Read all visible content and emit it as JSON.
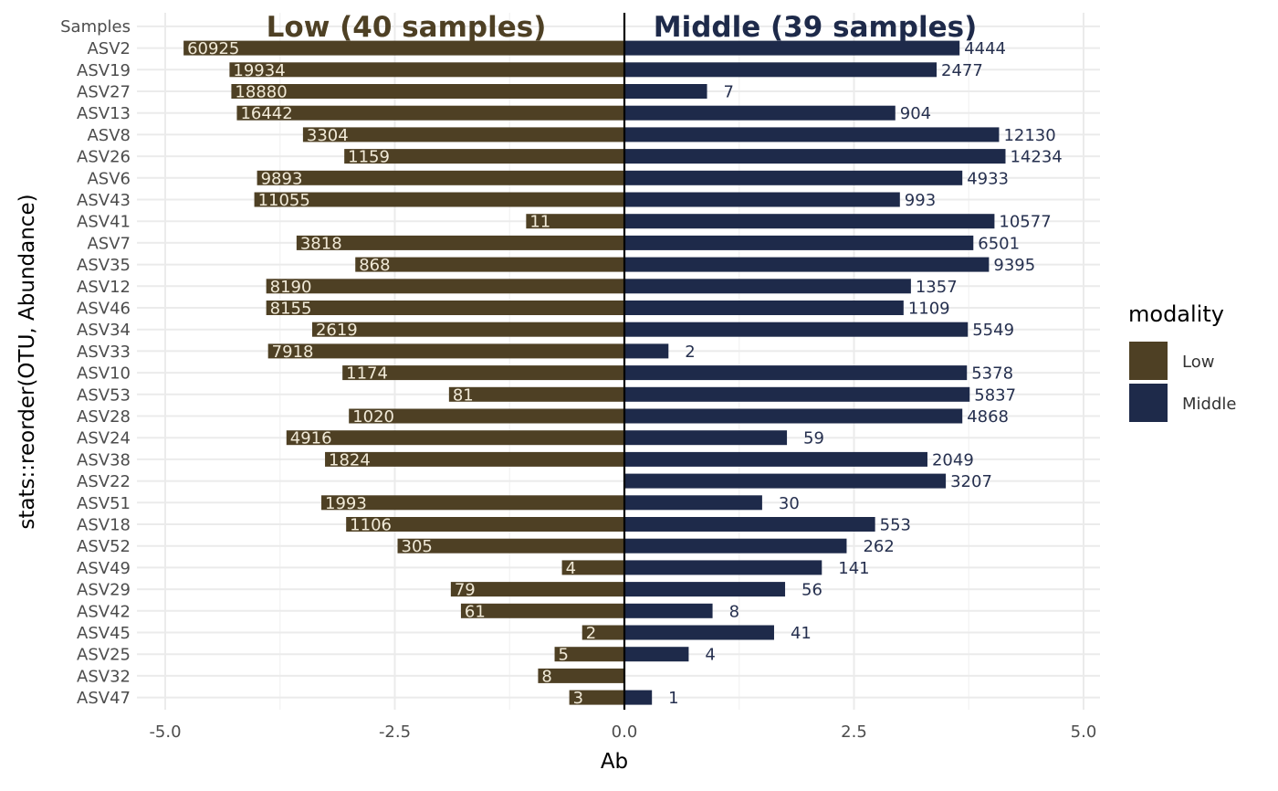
{
  "chart_data": {
    "type": "bar",
    "orientation": "horizontal-diverging",
    "ylabel": "stats::reorder(OTU, Abundance)",
    "xlabel": "Ab",
    "xlim": [
      -5.0,
      5.0
    ],
    "xticks": [
      -5.0,
      -2.5,
      0.0,
      2.5,
      5.0
    ],
    "xtick_labels": [
      "-5.0",
      "-2.5",
      "0.0",
      "2.5",
      "5.0"
    ],
    "top_row_label": "Samples",
    "headers": {
      "left": "Low (40 samples)",
      "right": "Middle (39 samples)"
    },
    "legend": {
      "title": "modality",
      "items": [
        "Low",
        "Middle"
      ],
      "position": "right"
    },
    "colors": {
      "Low": "#4e4024",
      "Middle": "#1e2a4a",
      "low_label": "#f1ead8",
      "middle_label": "#26304f"
    },
    "categories": [
      "ASV2",
      "ASV19",
      "ASV27",
      "ASV13",
      "ASV8",
      "ASV26",
      "ASV6",
      "ASV43",
      "ASV41",
      "ASV7",
      "ASV35",
      "ASV12",
      "ASV46",
      "ASV34",
      "ASV33",
      "ASV10",
      "ASV53",
      "ASV28",
      "ASV24",
      "ASV38",
      "ASV22",
      "ASV51",
      "ASV18",
      "ASV52",
      "ASV49",
      "ASV29",
      "ASV42",
      "ASV45",
      "ASV25",
      "ASV32",
      "ASV47"
    ],
    "series": [
      {
        "name": "Low",
        "values": [
          -4.8,
          -4.3,
          -4.28,
          -4.22,
          -3.5,
          -3.05,
          -4.0,
          -4.03,
          -1.07,
          -3.57,
          -2.93,
          -3.9,
          -3.9,
          -3.4,
          -3.88,
          -3.07,
          -1.91,
          -3.0,
          -3.68,
          -3.26,
          0,
          -3.3,
          -3.03,
          -2.47,
          -0.68,
          -1.89,
          -1.78,
          -0.46,
          -0.76,
          -0.94,
          -0.6
        ],
        "labels": [
          "60925",
          "19934",
          "18880",
          "16442",
          "3304",
          "1159",
          "9893",
          "11055",
          "11",
          "3818",
          "868",
          "8190",
          "8155",
          "2619",
          "7918",
          "1174",
          "81",
          "1020",
          "4916",
          "1824",
          "",
          "1993",
          "1106",
          "305",
          "4",
          "79",
          "61",
          "2",
          "5",
          "8",
          "3"
        ]
      },
      {
        "name": "Middle",
        "values": [
          3.65,
          3.4,
          0.9,
          2.95,
          4.08,
          4.15,
          3.68,
          3.0,
          4.03,
          3.8,
          3.97,
          3.12,
          3.04,
          3.74,
          0.48,
          3.73,
          3.76,
          3.68,
          1.77,
          3.3,
          3.5,
          1.5,
          2.73,
          2.42,
          2.15,
          1.75,
          0.96,
          1.63,
          0.7,
          0,
          0.3
        ],
        "labels": [
          "4444",
          "2477",
          "7",
          "904",
          "12130",
          "14234",
          "4933",
          "993",
          "10577",
          "6501",
          "9395",
          "1357",
          "1109",
          "5549",
          "2",
          "5378",
          "5837",
          "4868",
          "59",
          "2049",
          "3207",
          "30",
          "553",
          "262",
          "141",
          "56",
          "8",
          "41",
          "4",
          "",
          "1"
        ]
      }
    ]
  }
}
